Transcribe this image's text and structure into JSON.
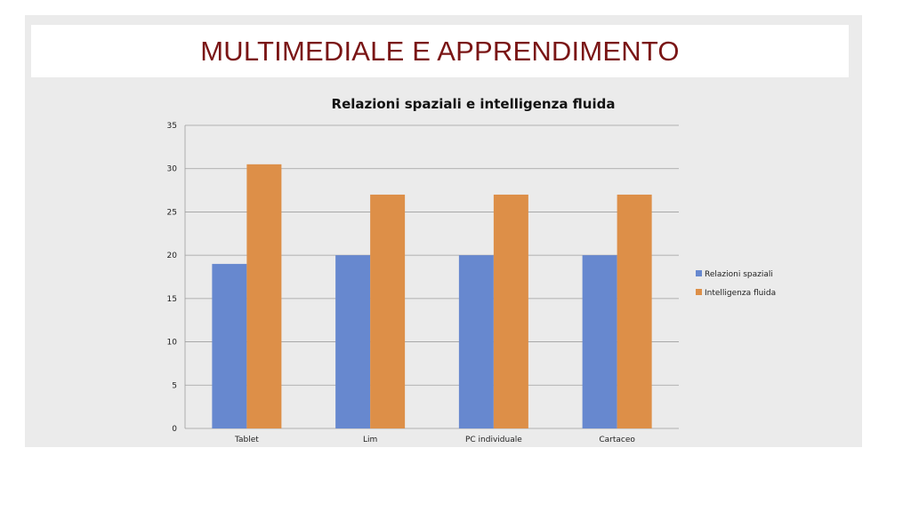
{
  "slide": {
    "title": "MULTIMEDIALE E APPRENDIMENTO"
  },
  "colors": {
    "title_text": "#7a1515",
    "panel_background": "#ebebeb",
    "grid": "#9e9e9e"
  },
  "chart_data": {
    "type": "bar",
    "title": "Relazioni spaziali e intelligenza fluida",
    "xlabel": "",
    "ylabel": "",
    "categories": [
      "Tablet",
      "Lim",
      "PC individuale",
      "Cartaceo"
    ],
    "series": [
      {
        "name": "Relazioni spaziali",
        "color": "#6788cf",
        "values": [
          19,
          20,
          20,
          20
        ]
      },
      {
        "name": "Intelligenza fluida",
        "color": "#dd8f48",
        "values": [
          30.5,
          27,
          27,
          27
        ]
      }
    ],
    "ylim": [
      0,
      35
    ],
    "yticks": [
      0,
      5,
      10,
      15,
      20,
      25,
      30,
      35
    ],
    "grid": true,
    "legend_position": "right"
  }
}
